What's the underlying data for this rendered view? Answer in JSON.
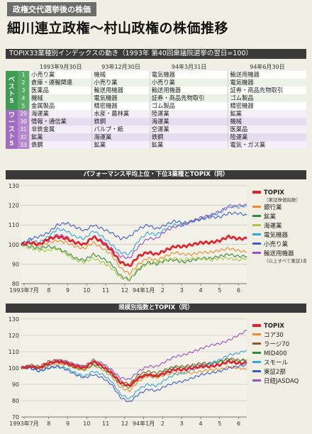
{
  "kicker": "政権交代選挙後の株価",
  "title": "細川連立政権〜村山政権の株価推移",
  "ranking": {
    "header": "TOPIX33業種別インデックスの動き（1993年 第40回衆議院選挙の翌日=100）",
    "columns": [
      "1993年9月30日",
      "93年12月30日",
      "94年3月31日",
      "94年6月30日"
    ],
    "best_label": "ベスト5",
    "worst_label": "ワースト5",
    "best": [
      {
        "n": "1",
        "cells": [
          "小売り業",
          "機械",
          "電気機器",
          "輸送用機器"
        ]
      },
      {
        "n": "2",
        "cells": [
          "倉庫・運輸関連",
          "小売り業",
          "小売り業",
          "電気機器"
        ]
      },
      {
        "n": "3",
        "cells": [
          "医薬品",
          "輸送用機器",
          "輸送用機器",
          "証券・商品先物取引"
        ]
      },
      {
        "n": "4",
        "cells": [
          "機械",
          "電気機器",
          "証券・商品先物取引",
          "ゴム製品"
        ]
      },
      {
        "n": "5",
        "cells": [
          "金属製品",
          "精密機器",
          "ゴム製品",
          "精密機器"
        ]
      }
    ],
    "worst": [
      {
        "n": "29",
        "cells": [
          "海運業",
          "水産・農林業",
          "陸運業",
          "鉱業"
        ]
      },
      {
        "n": "30",
        "cells": [
          "情報・通信業",
          "鉄鋼",
          "海運業",
          "機械"
        ]
      },
      {
        "n": "31",
        "cells": [
          "非鉄金属",
          "パルプ・紙",
          "空運業",
          "医薬品"
        ]
      },
      {
        "n": "32",
        "cells": [
          "鉱業",
          "海運業",
          "鉄鋼",
          "陸運業"
        ]
      },
      {
        "n": "33",
        "cells": [
          "鉄鋼",
          "鉱業",
          "鉱業",
          "電気・ガス業"
        ]
      }
    ]
  },
  "chart_data": [
    {
      "type": "line",
      "title": "パフォーマンス平均上位・下位3業種とTOPIX（同）",
      "ylim": [
        80,
        130
      ],
      "yticks": [
        80,
        90,
        100,
        110,
        120,
        130
      ],
      "xlabels": [
        "1993年7月",
        "8",
        "9",
        "10",
        "11",
        "12",
        "94年1月",
        "2",
        "3",
        "4",
        "5",
        "6"
      ],
      "legend_notes": [
        "（東証株価指数）",
        "（以上すべて東証1部）"
      ],
      "series": [
        {
          "name": "TOPIX",
          "color": "#e4212a",
          "values": [
            100,
            101,
            100,
            103,
            104,
            103,
            101,
            100,
            104,
            101,
            97,
            91,
            89,
            94,
            96,
            95,
            97,
            99,
            99,
            100,
            101,
            101,
            102,
            104,
            103,
            103
          ]
        },
        {
          "name": "銀行業",
          "color": "#f08a2c",
          "values": [
            100,
            101,
            99,
            101,
            102,
            101,
            99,
            98,
            101,
            98,
            95,
            88,
            85,
            90,
            93,
            92,
            94,
            96,
            95,
            95,
            96,
            96,
            97,
            98,
            97,
            96
          ]
        },
        {
          "name": "鉱業",
          "color": "#2e8b3d",
          "values": [
            100,
            99,
            98,
            99,
            98,
            96,
            93,
            92,
            95,
            93,
            90,
            84,
            82,
            87,
            91,
            90,
            92,
            92,
            91,
            92,
            93,
            93,
            94,
            95,
            94,
            94
          ]
        },
        {
          "name": "海運業",
          "color": "#a8c84a",
          "values": [
            100,
            98,
            97,
            97,
            98,
            95,
            92,
            91,
            93,
            91,
            88,
            83,
            82,
            88,
            90,
            91,
            92,
            93,
            92,
            93,
            93,
            92,
            93,
            93,
            92,
            93
          ]
        },
        {
          "name": "電気機器",
          "color": "#2fa8e0",
          "values": [
            100,
            102,
            101,
            104,
            108,
            107,
            104,
            103,
            107,
            104,
            100,
            96,
            95,
            102,
            106,
            105,
            108,
            110,
            110,
            112,
            113,
            115,
            116,
            120,
            119,
            120
          ]
        },
        {
          "name": "小売り業",
          "color": "#3b5fc8",
          "values": [
            100,
            103,
            104,
            106,
            110,
            111,
            109,
            107,
            110,
            108,
            106,
            103,
            104,
            108,
            110,
            108,
            110,
            112,
            111,
            112,
            113,
            114,
            114,
            116,
            116,
            115
          ]
        },
        {
          "name": "輸送用機器",
          "color": "#9a4fc4",
          "values": [
            100,
            101,
            100,
            102,
            105,
            104,
            101,
            100,
            104,
            102,
            98,
            94,
            93,
            99,
            103,
            103,
            107,
            109,
            110,
            112,
            114,
            115,
            117,
            119,
            120,
            120
          ]
        }
      ]
    },
    {
      "type": "line",
      "title": "規模別指数とTOPIX（同）",
      "ylim": [
        70,
        130
      ],
      "yticks": [
        70,
        80,
        90,
        100,
        110,
        120,
        130
      ],
      "xlabels": [
        "1993年7月",
        "8",
        "9",
        "10",
        "11",
        "12",
        "94年1月",
        "2",
        "3",
        "4",
        "5",
        "6"
      ],
      "series": [
        {
          "name": "TOPIX",
          "color": "#e4212a",
          "values": [
            100,
            101,
            100,
            103,
            104,
            103,
            101,
            100,
            104,
            101,
            97,
            91,
            89,
            94,
            96,
            95,
            97,
            99,
            99,
            100,
            101,
            101,
            102,
            104,
            103,
            103
          ]
        },
        {
          "name": "コア30",
          "color": "#f08a2c",
          "values": [
            100,
            101,
            99,
            101,
            102,
            102,
            100,
            99,
            102,
            99,
            95,
            88,
            86,
            92,
            95,
            94,
            96,
            97,
            97,
            97,
            98,
            99,
            99,
            101,
            100,
            99
          ]
        },
        {
          "name": "ラージ70",
          "color": "#8a5a2b",
          "values": [
            100,
            102,
            101,
            104,
            105,
            104,
            102,
            101,
            105,
            102,
            98,
            92,
            90,
            96,
            98,
            97,
            99,
            101,
            101,
            102,
            103,
            103,
            104,
            106,
            105,
            105
          ]
        },
        {
          "name": "MID400",
          "color": "#2e8b3d",
          "values": [
            100,
            101,
            100,
            102,
            104,
            103,
            100,
            99,
            102,
            100,
            96,
            90,
            88,
            94,
            96,
            95,
            98,
            100,
            100,
            101,
            102,
            102,
            104,
            105,
            104,
            105
          ]
        },
        {
          "name": "スモール",
          "color": "#2fa8e0",
          "values": [
            100,
            100,
            98,
            100,
            101,
            100,
            97,
            95,
            98,
            96,
            92,
            84,
            81,
            87,
            90,
            89,
            93,
            96,
            97,
            99,
            101,
            103,
            105,
            108,
            109,
            111
          ]
        },
        {
          "name": "東証2部",
          "color": "#3b5fc8",
          "values": [
            100,
            100,
            98,
            100,
            101,
            99,
            96,
            94,
            96,
            94,
            90,
            82,
            79,
            84,
            87,
            86,
            89,
            91,
            92,
            94,
            96,
            97,
            98,
            100,
            101,
            102
          ]
        },
        {
          "name": "日経JASDAQ",
          "color": "#9a4fc4",
          "values": [
            100,
            101,
            100,
            102,
            105,
            104,
            102,
            101,
            104,
            103,
            99,
            94,
            93,
            98,
            101,
            101,
            104,
            107,
            108,
            110,
            112,
            114,
            115,
            117,
            120,
            123
          ]
        }
      ]
    }
  ]
}
